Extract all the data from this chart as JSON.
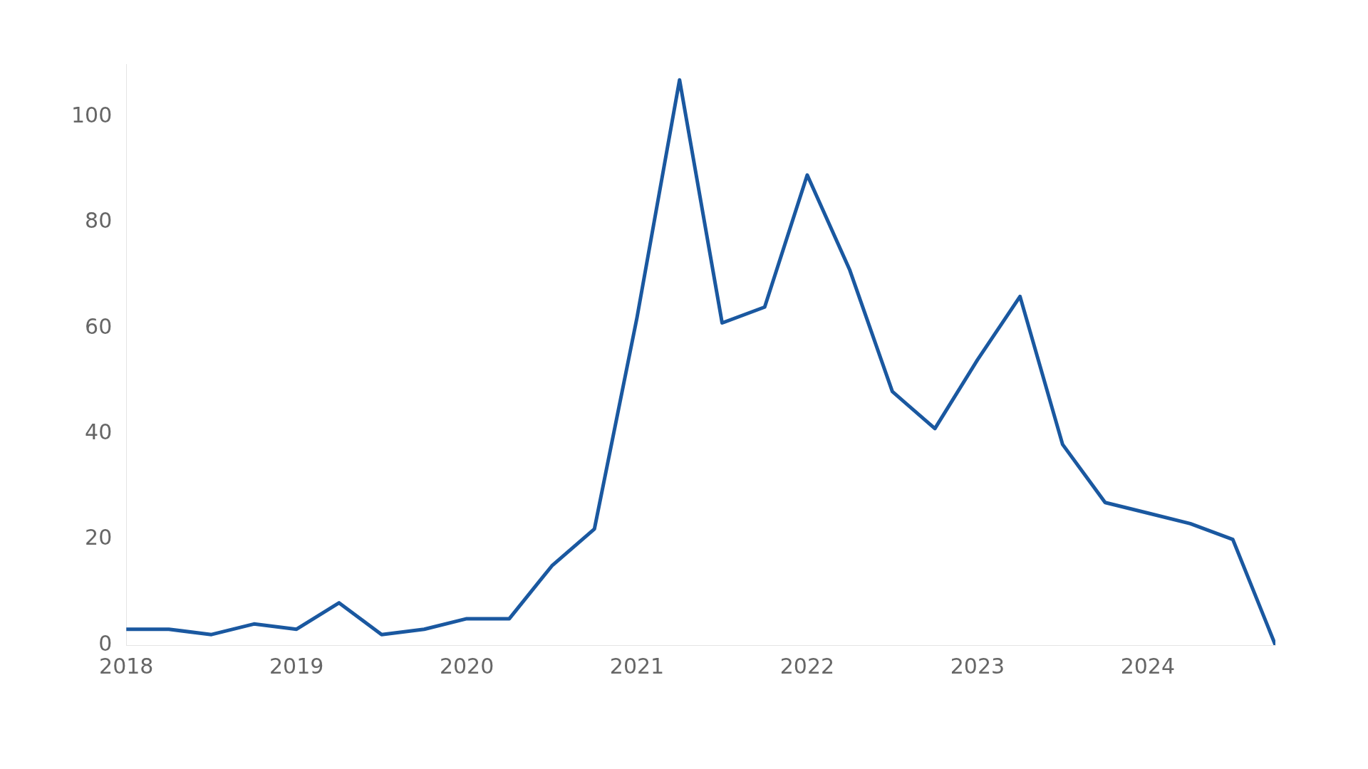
{
  "chart_data": {
    "type": "line",
    "x": [
      "2018-01",
      "2018-04",
      "2018-07",
      "2018-10",
      "2019-01",
      "2019-04",
      "2019-07",
      "2019-10",
      "2020-01",
      "2020-04",
      "2020-07",
      "2020-10",
      "2021-01",
      "2021-04",
      "2021-07",
      "2021-10",
      "2022-01",
      "2022-04",
      "2022-07",
      "2022-10",
      "2023-01",
      "2023-04",
      "2023-07",
      "2023-10",
      "2024-01",
      "2024-04",
      "2024-07",
      "2024-10"
    ],
    "series": [
      {
        "color": "#1a58a0",
        "values": [
          3,
          3,
          2,
          4,
          3,
          8,
          2,
          3,
          5,
          5,
          15,
          22,
          62,
          107,
          61,
          64,
          89,
          71,
          48,
          41,
          54,
          66,
          38,
          27,
          25,
          23,
          20,
          0
        ]
      }
    ],
    "xlim": [
      "2018-01",
      "2024-10"
    ],
    "xticks": [
      "2018",
      "2019",
      "2020",
      "2021",
      "2022",
      "2023",
      "2024"
    ],
    "ylim": [
      0,
      110
    ],
    "yticks": [
      0,
      20,
      40,
      60,
      80,
      100
    ],
    "grid": false,
    "legend": false,
    "marker": "none",
    "line_style": "solid"
  }
}
